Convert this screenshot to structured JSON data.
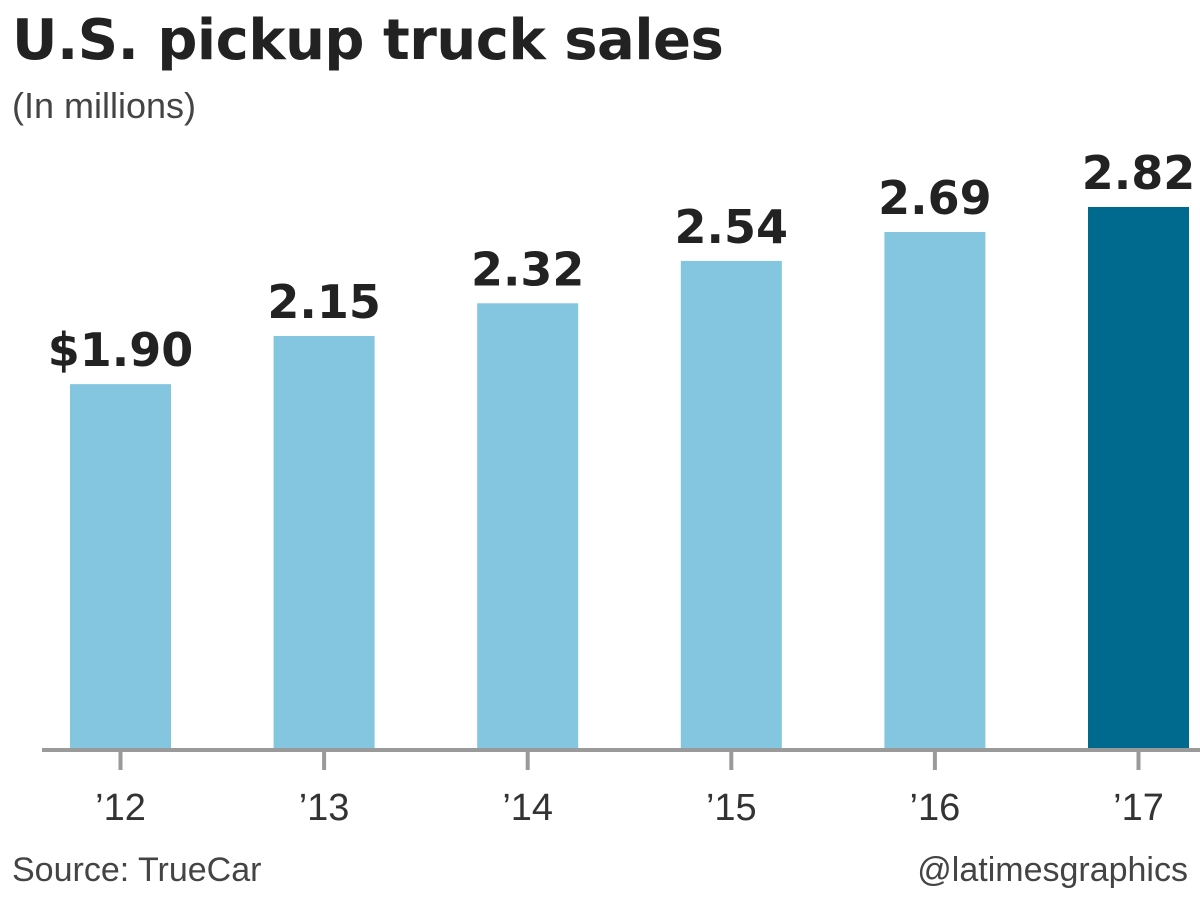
{
  "chart_data": {
    "type": "bar",
    "title": "U.S. pickup truck sales",
    "subtitle": "(In millions)",
    "categories": [
      "’12",
      "’13",
      "’14",
      "’15",
      "’16",
      "’17"
    ],
    "values": [
      1.9,
      2.15,
      2.32,
      2.54,
      2.69,
      2.82
    ],
    "value_labels": [
      "$1.90",
      "2.15",
      "2.32",
      "2.54",
      "2.69",
      "2.82"
    ],
    "ylim": [
      0,
      2.82
    ],
    "grid": false,
    "colors": {
      "bar": "#84c5df",
      "highlight_bar": "#006a8e",
      "axis": "#9a9a9a",
      "label": "#222222"
    },
    "highlight_index": 5
  },
  "footer": {
    "source": "Source: TrueCar",
    "credit": "@latimesgraphics"
  }
}
